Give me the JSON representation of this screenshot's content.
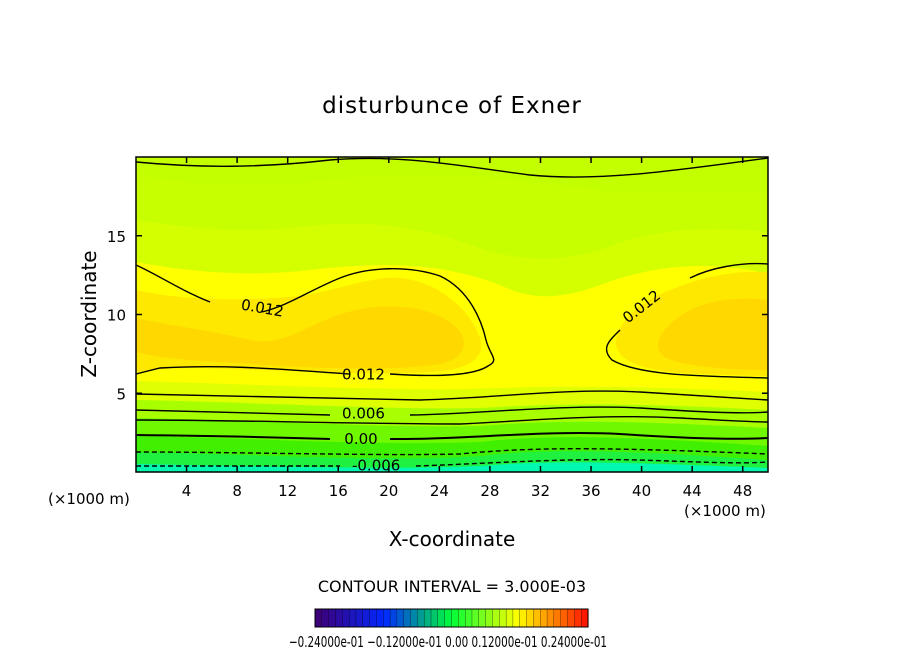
{
  "chart_data": {
    "type": "heatmap",
    "title": "disturbunce of Exner",
    "xlabel": "X-coordinate",
    "ylabel": "Z-coordinate",
    "xlim": [
      0,
      50
    ],
    "ylim": [
      0,
      20
    ],
    "x_ticks": [
      "4",
      "8",
      "12",
      "16",
      "20",
      "24",
      "28",
      "32",
      "36",
      "40",
      "44",
      "48"
    ],
    "y_ticks": [
      "5",
      "10",
      "15"
    ],
    "x_unit": "(×1000 m)",
    "y_unit": "(×1000 m)",
    "contour_labels": [
      {
        "text": "0.012",
        "x": 10,
        "z": 10.4,
        "rot": 10
      },
      {
        "text": "0.012",
        "x": 40,
        "z": 10.5,
        "rot": -38
      },
      {
        "text": "0.012",
        "x": 18,
        "z": 6.2,
        "rot": 0
      },
      {
        "text": "0.006",
        "x": 18,
        "z": 3.7,
        "rot": 0
      },
      {
        "text": "0.00",
        "x": 17.8,
        "z": 2.1,
        "rot": 0
      },
      {
        "text": "-0.006",
        "x": 19,
        "z": 0.4,
        "rot": 0
      }
    ],
    "contour_interval_text": "CONTOUR INTERVAL = 3.000E-03",
    "colorbar_labels_text": "−0.24000e-01  −0.12000e-01  0.00  0.12000e-01  0.24000e-01",
    "colorbar_range": [
      -0.024,
      0.024
    ],
    "colors": {
      "low": "#00ffc0",
      "green": "#30f000",
      "yellowgreen": "#c8ff00",
      "yellow": "#ffff00",
      "orange": "#ffd800"
    }
  }
}
